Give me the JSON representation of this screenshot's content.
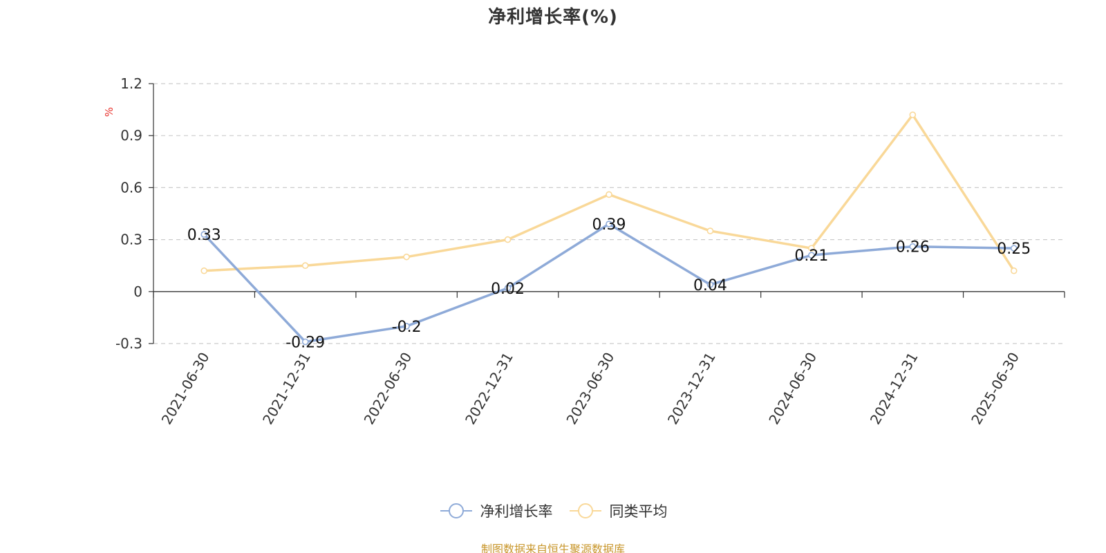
{
  "chart_data": {
    "type": "line",
    "title": "净利增长率(%)",
    "ylabel": "%",
    "xlabel": "",
    "categories": [
      "2021-06-30",
      "2021-12-31",
      "2022-06-30",
      "2022-12-31",
      "2023-06-30",
      "2023-12-31",
      "2024-06-30",
      "2024-12-31",
      "2025-06-30"
    ],
    "ylim": [
      -0.3,
      1.2
    ],
    "yticks": [
      "1.2",
      "0.9",
      "0.6",
      "0.3",
      "0",
      "-0.3"
    ],
    "grid": true,
    "series": [
      {
        "name": "净利增长率",
        "color": "#8eaad8",
        "values": [
          0.33,
          -0.29,
          -0.2,
          0.02,
          0.39,
          0.04,
          0.21,
          0.26,
          0.25
        ],
        "labels": [
          "0.33",
          "-0.29",
          "-0.2",
          "0.02",
          "0.39",
          "0.04",
          "0.21",
          "0.26",
          "0.25"
        ]
      },
      {
        "name": "同类平均",
        "color": "#f9d898",
        "values": [
          0.12,
          0.15,
          0.2,
          0.3,
          0.56,
          0.35,
          0.25,
          1.02,
          0.12
        ]
      }
    ],
    "legend_position": "bottom",
    "source": "制图数据来自恒生聚源数据库"
  }
}
